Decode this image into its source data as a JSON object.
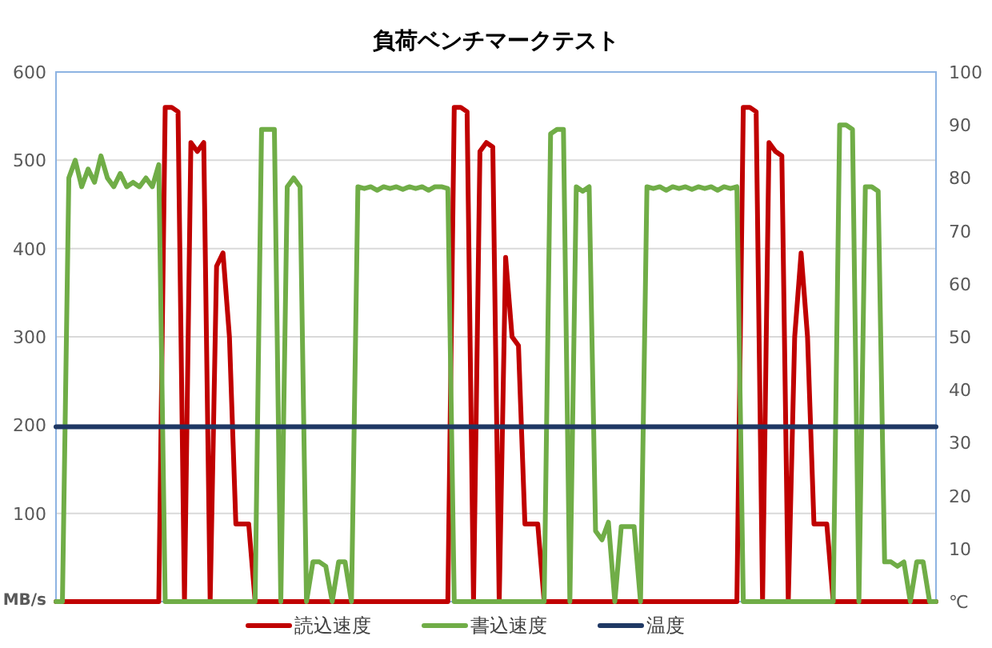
{
  "chart_data": {
    "type": "line",
    "title": "負荷ベンチマークテスト",
    "ylabel": "MB/s",
    "y2label": "℃",
    "categories": [
      null,
      null,
      null,
      null,
      null,
      null,
      null,
      null,
      null,
      null,
      null,
      null,
      null,
      null,
      null,
      null,
      null,
      null,
      null,
      null,
      null,
      null,
      null,
      null,
      null,
      null,
      null,
      null,
      null,
      null,
      null,
      null,
      null,
      null,
      null,
      null,
      null,
      null,
      null,
      null,
      null,
      null,
      null,
      null,
      null,
      null,
      null,
      null,
      null,
      null,
      null,
      null,
      null,
      null,
      null,
      null,
      null,
      null,
      null,
      null,
      null,
      null,
      null,
      null,
      null,
      null,
      null,
      null,
      null,
      null,
      null,
      null,
      null,
      null,
      null,
      null,
      null,
      null,
      null,
      null,
      null,
      null,
      null,
      null,
      null,
      null,
      null,
      null,
      null,
      null,
      null,
      null,
      null,
      null,
      null,
      null,
      null,
      null,
      null,
      null,
      null,
      null,
      null,
      null,
      null,
      null,
      null,
      null,
      null,
      null,
      null,
      null,
      null,
      null,
      null,
      null,
      null,
      null,
      null,
      null,
      null,
      null,
      null,
      null,
      null,
      null,
      null,
      null,
      null,
      null,
      null,
      null,
      null,
      null,
      null,
      null,
      null,
      null
    ],
    "series": [
      {
        "name": "読込速度",
        "color": "#c00000",
        "values": [
          0,
          0,
          0,
          0,
          0,
          0,
          0,
          0,
          0,
          0,
          0,
          0,
          0,
          0,
          0,
          0,
          0,
          560,
          560,
          555,
          0,
          520,
          510,
          520,
          0,
          380,
          395,
          300,
          88,
          88,
          88,
          0,
          0,
          0,
          0,
          0,
          0,
          0,
          0,
          0,
          0,
          0,
          0,
          0,
          0,
          0,
          0,
          0,
          0,
          0,
          0,
          0,
          0,
          0,
          0,
          0,
          0,
          0,
          0,
          0,
          0,
          0,
          560,
          560,
          555,
          0,
          510,
          520,
          515,
          0,
          390,
          300,
          290,
          88,
          88,
          88,
          0,
          0,
          0,
          0,
          0,
          0,
          0,
          0,
          0,
          0,
          0,
          0,
          0,
          0,
          0,
          0,
          0,
          0,
          0,
          0,
          0,
          0,
          0,
          0,
          0,
          0,
          0,
          0,
          0,
          0,
          0,
          560,
          560,
          555,
          0,
          520,
          510,
          505,
          0,
          300,
          395,
          300,
          88,
          88,
          88,
          0,
          0,
          0,
          0,
          0,
          0,
          0,
          0,
          0,
          0,
          0,
          0,
          0,
          0,
          0,
          0,
          0
        ]
      },
      {
        "name": "書込速度",
        "color": "#70ad47",
        "values": [
          0,
          0,
          480,
          500,
          470,
          490,
          475,
          505,
          480,
          470,
          485,
          470,
          475,
          470,
          480,
          470,
          495,
          0,
          0,
          0,
          0,
          0,
          0,
          0,
          0,
          0,
          0,
          0,
          0,
          0,
          0,
          0,
          535,
          535,
          535,
          0,
          470,
          480,
          470,
          0,
          45,
          45,
          40,
          0,
          45,
          45,
          0,
          470,
          468,
          470,
          466,
          470,
          468,
          470,
          467,
          470,
          468,
          470,
          466,
          470,
          470,
          468,
          0,
          0,
          0,
          0,
          0,
          0,
          0,
          0,
          0,
          0,
          0,
          0,
          0,
          0,
          0,
          530,
          535,
          535,
          0,
          470,
          465,
          470,
          80,
          70,
          90,
          0,
          85,
          85,
          85,
          0,
          470,
          468,
          470,
          466,
          470,
          468,
          470,
          467,
          470,
          468,
          470,
          466,
          470,
          468,
          470,
          0,
          0,
          0,
          0,
          0,
          0,
          0,
          0,
          0,
          0,
          0,
          0,
          0,
          0,
          0,
          540,
          540,
          535,
          0,
          470,
          470,
          465,
          45,
          45,
          40,
          45,
          0,
          45,
          45,
          0,
          0
        ]
      },
      {
        "name": "温度",
        "color": "#1f3864",
        "axis": "y2",
        "values": [
          33,
          33,
          33,
          33,
          33,
          33,
          33,
          33,
          33,
          33,
          33,
          33,
          33,
          33,
          33,
          33,
          33,
          33,
          33,
          33,
          33,
          33,
          33,
          33,
          33,
          33,
          33,
          33,
          33,
          33,
          33,
          33,
          33,
          33,
          33,
          33,
          33,
          33,
          33,
          33,
          33,
          33,
          33,
          33,
          33,
          33,
          33,
          33,
          33,
          33,
          33,
          33,
          33,
          33,
          33,
          33,
          33,
          33,
          33,
          33,
          33,
          33,
          33,
          33,
          33,
          33,
          33,
          33,
          33,
          33,
          33,
          33,
          33,
          33,
          33,
          33,
          33,
          33,
          33,
          33,
          33,
          33,
          33,
          33,
          33,
          33,
          33,
          33,
          33,
          33,
          33,
          33,
          33,
          33,
          33,
          33,
          33,
          33,
          33,
          33,
          33,
          33,
          33,
          33,
          33,
          33,
          33,
          33,
          33,
          33,
          33,
          33,
          33,
          33,
          33,
          33,
          33,
          33,
          33,
          33,
          33,
          33,
          33,
          33,
          33,
          33,
          33,
          33,
          33,
          33,
          33,
          33,
          33,
          33,
          33,
          33,
          33,
          33
        ]
      }
    ],
    "ylim": [
      0,
      600
    ],
    "yticks": [
      {
        "value": 0,
        "label": null
      },
      100,
      200,
      300,
      400,
      500,
      600
    ],
    "y2lim": [
      0,
      100
    ],
    "y2ticks": [
      10,
      20,
      30,
      40,
      50,
      60,
      70,
      80,
      90,
      100
    ],
    "grid": "y",
    "legend": "bottom",
    "tick_labels": "y",
    "line_style": "solid",
    "marker": "none"
  }
}
